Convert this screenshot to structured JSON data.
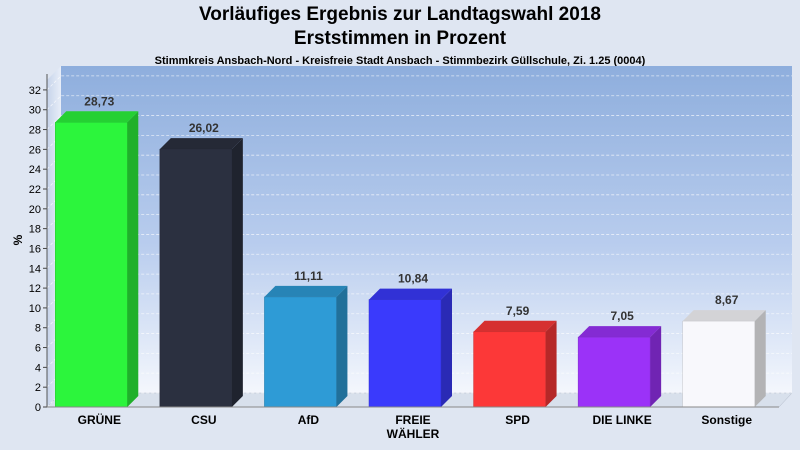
{
  "header": {
    "title_line1": "Vorläufiges Ergebnis zur Landtagswahl 2018",
    "title_line2": "Erststimmen in Prozent",
    "subtitle": "Stimmkreis Ansbach-Nord - Kreisfreie Stadt Ansbach - Stimmbezirk Güllschule, Zi. 1.25 (0004)"
  },
  "chart_data": {
    "type": "bar",
    "title": "Vorläufiges Ergebnis zur Landtagswahl 2018",
    "subtitle": "Erststimmen in Prozent",
    "ylabel": "%",
    "xlabel": "",
    "ylim": [
      0,
      33
    ],
    "yticks": [
      0,
      2,
      4,
      6,
      8,
      10,
      12,
      14,
      16,
      18,
      20,
      22,
      24,
      26,
      28,
      30,
      32
    ],
    "grid": true,
    "categories": [
      [
        "GRÜNE"
      ],
      [
        "CSU"
      ],
      [
        "AfD"
      ],
      [
        "FREIE",
        "WÄHLER"
      ],
      [
        "SPD"
      ],
      [
        "DIE LINKE"
      ],
      [
        "Sonstige"
      ]
    ],
    "values": [
      28.73,
      26.02,
      11.11,
      10.84,
      7.59,
      7.05,
      8.67
    ],
    "value_labels": [
      "28,73",
      "26,02",
      "11,11",
      "10,84",
      "7,59",
      "7,05",
      "8,67"
    ],
    "colors": [
      "#2cf53c",
      "#2b3040",
      "#2e9bd6",
      "#3a3afc",
      "#fc3838",
      "#9b32f8",
      "#f8f8fc"
    ]
  }
}
